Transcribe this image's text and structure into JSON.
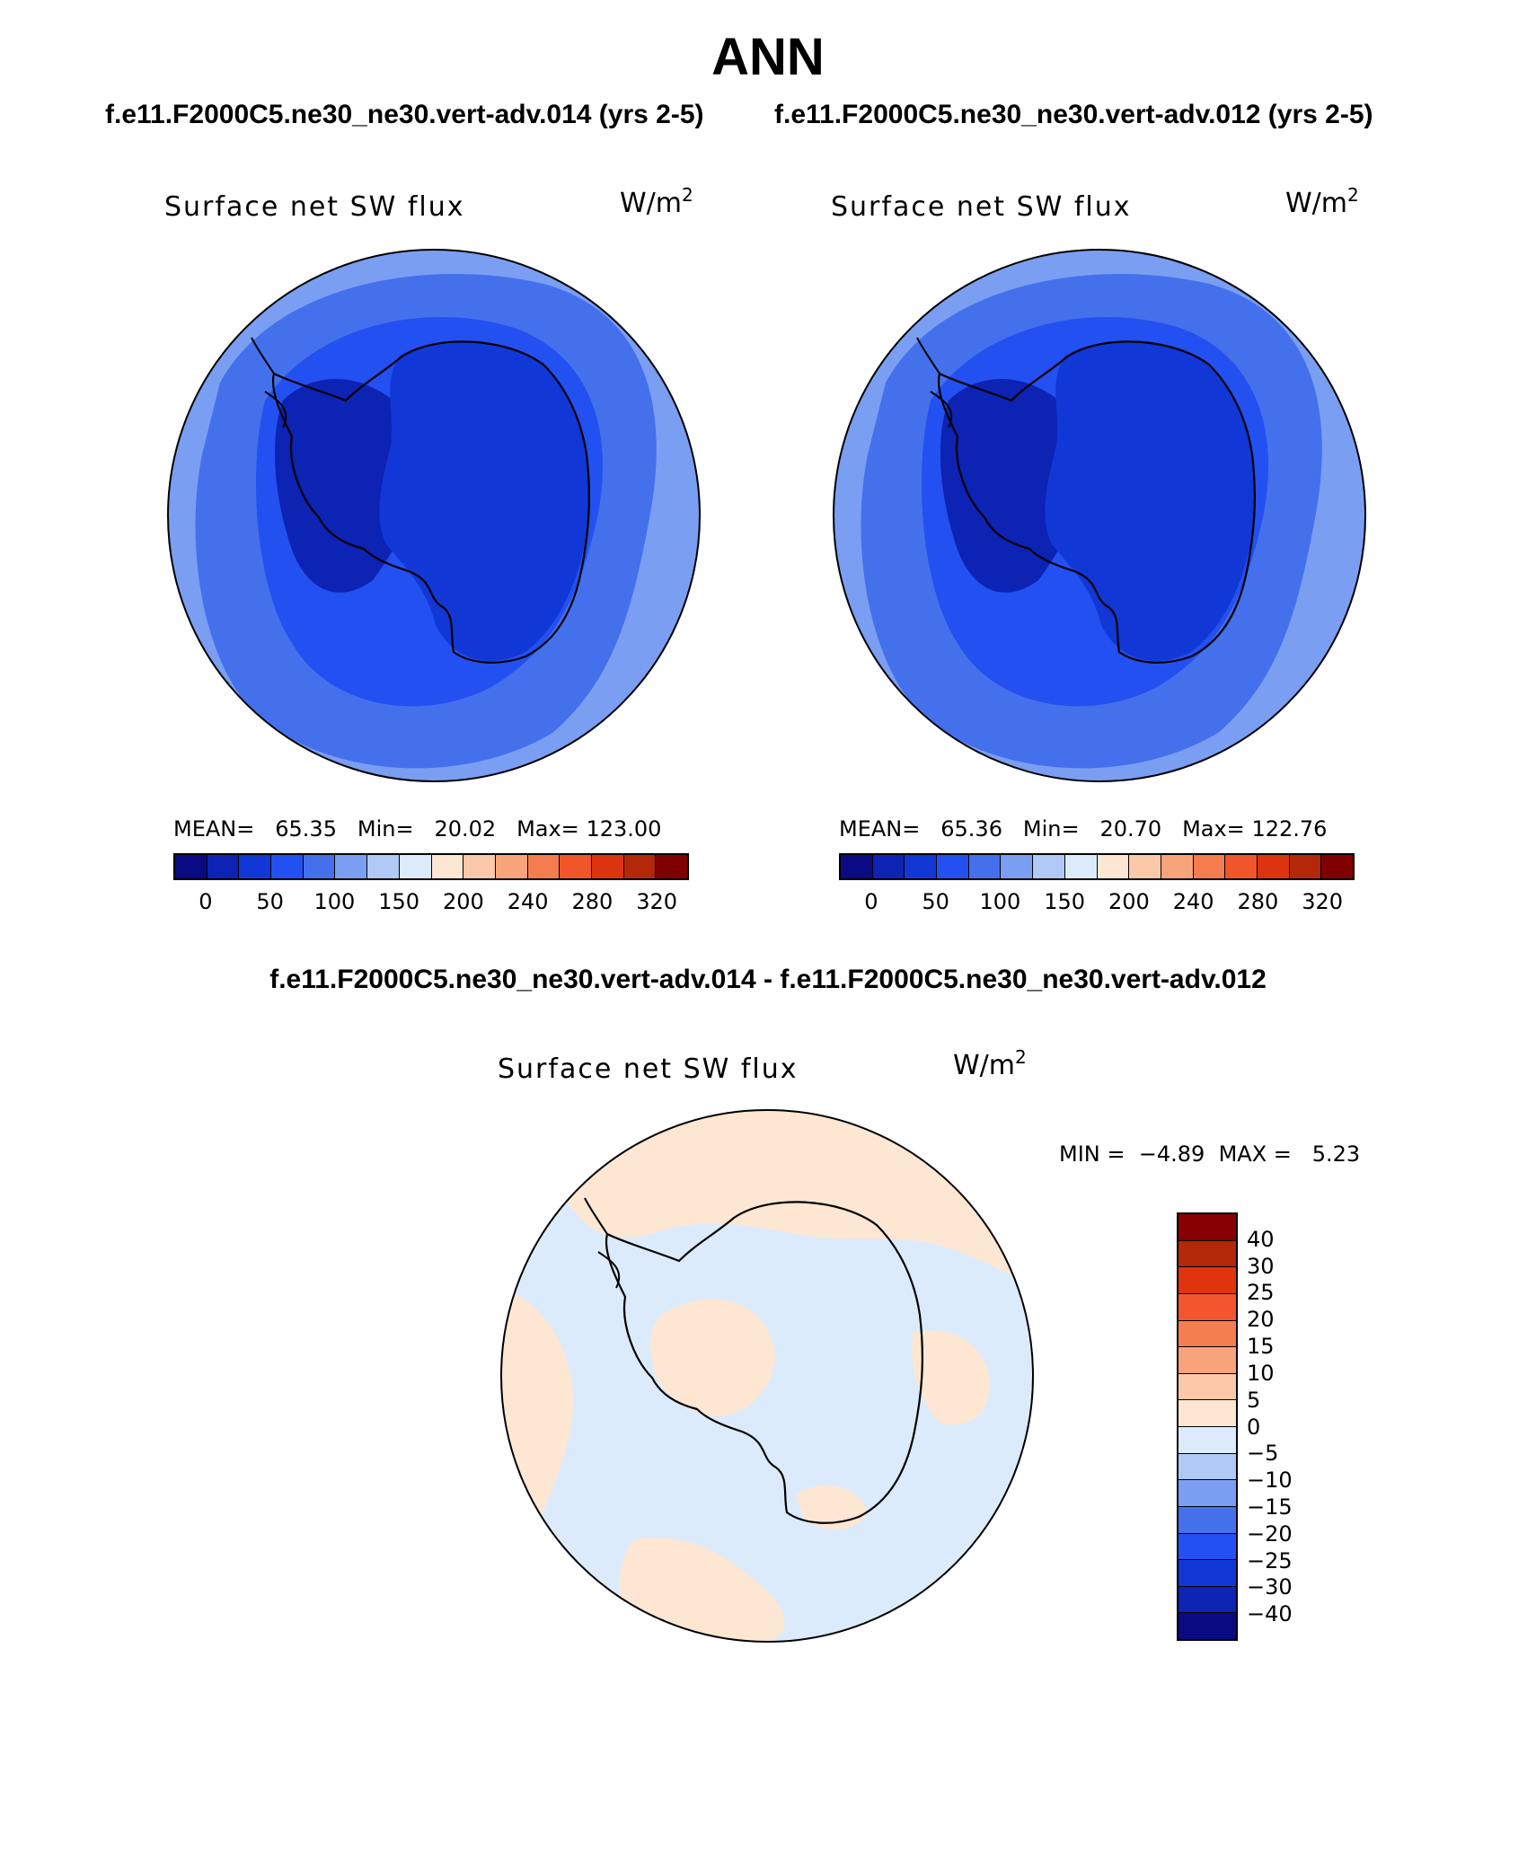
{
  "title": "ANN",
  "runs": {
    "a": "f.e11.F2000C5.ne30_ne30.vert-adv.014 (yrs 2-5)",
    "b": "f.e11.F2000C5.ne30_ne30.vert-adv.012 (yrs 2-5)",
    "diff_title": "f.e11.F2000C5.ne30_ne30.vert-adv.014 - f.e11.F2000C5.ne30_ne30.vert-adv.012"
  },
  "panels": [
    {
      "variable": "Surface net SW flux",
      "unit": "W/m",
      "unit_exp": "2",
      "mean_label": "MEAN=",
      "mean": "65.35",
      "min_label": "Min=",
      "min": "20.02",
      "max_label": "Max=",
      "max": "123.00"
    },
    {
      "variable": "Surface net SW flux",
      "unit": "W/m",
      "unit_exp": "2",
      "mean_label": "MEAN=",
      "mean": "65.36",
      "min_label": "Min=",
      "min": "20.70",
      "max_label": "Max=",
      "max": "122.76"
    }
  ],
  "diff_panel": {
    "variable": "Surface net SW flux",
    "unit": "W/m",
    "unit_exp": "2",
    "min_label": "MIN =",
    "min": "−4.89",
    "max_label": "MAX =",
    "max": "5.23"
  },
  "colorbar_main": {
    "colors": [
      "#0a0a82",
      "#0c23b4",
      "#1138d6",
      "#2350f0",
      "#4470ec",
      "#7a9ef2",
      "#b0c9f7",
      "#dcebfb",
      "#fde6d2",
      "#fcc8aa",
      "#f8a47a",
      "#f47c4e",
      "#f0562a",
      "#dd3410",
      "#b22808",
      "#800000"
    ],
    "tick_labels": [
      "0",
      "50",
      "100",
      "150",
      "200",
      "240",
      "280",
      "320"
    ]
  },
  "colorbar_diff": {
    "colors": [
      "#880000",
      "#b22808",
      "#e0340e",
      "#f3562c",
      "#f57e50",
      "#f8a47a",
      "#fcc8aa",
      "#fde6d2",
      "#dcebfb",
      "#b0c9f7",
      "#7a9ef2",
      "#4470ec",
      "#2350f0",
      "#1138d6",
      "#0c23b4",
      "#0a0a82"
    ],
    "tick_labels": [
      "40",
      "30",
      "25",
      "20",
      "15",
      "10",
      "5",
      "0",
      "−5",
      "−10",
      "−15",
      "−20",
      "−25",
      "−30",
      "−40"
    ]
  },
  "map_colors": {
    "ocean_outer": "#7a9ef2",
    "ocean_mid": "#4470ec",
    "ocean_inner": "#2350f0",
    "land": "#1138d6",
    "land_dark": "#0c23b4",
    "diff_positive": "#fde6d2",
    "diff_negative": "#dcebfb",
    "coast": "#000000"
  }
}
